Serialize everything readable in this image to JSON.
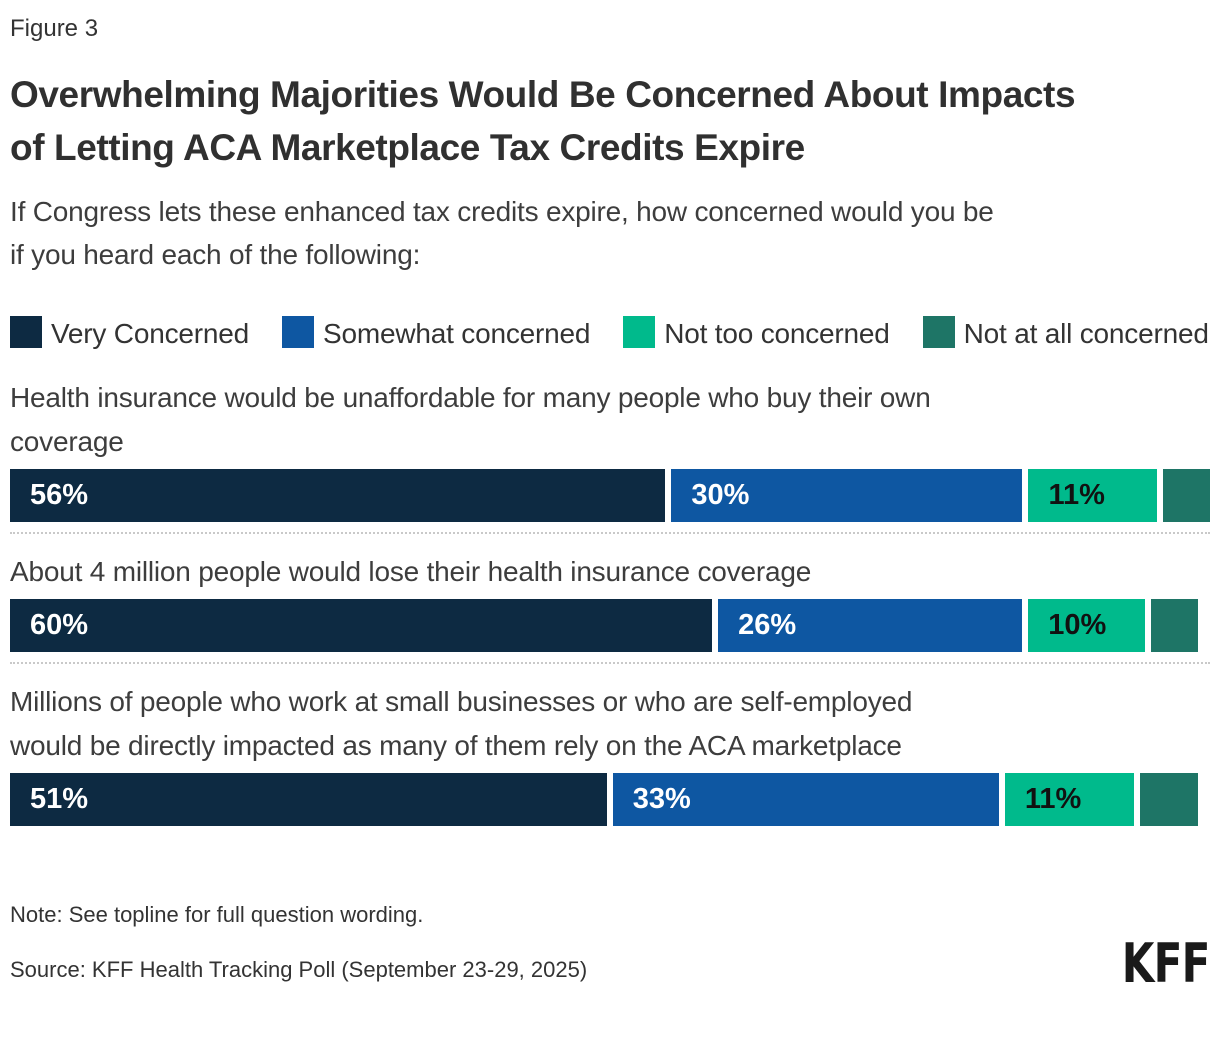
{
  "figure_label": "Figure 3",
  "title_lines": [
    "Overwhelming Majorities Would Be Concerned About Impacts",
    "of Letting ACA Marketplace Tax Credits Expire"
  ],
  "subtitle_lines": [
    "If Congress lets these enhanced tax credits expire, how concerned would you be",
    "if you heard each of the following:"
  ],
  "note": "Note: See topline for full question wording.",
  "source": "Source: KFF Health Tracking Poll (September 23-29, 2025)",
  "logo_text": "KFF",
  "colors": {
    "very_concerned": "#0d2a42",
    "somewhat_concerned": "#0e57a2",
    "not_too_concerned": "#00ba8c",
    "not_at_all_concerned": "#1e7566",
    "separator": "#c9c9c9",
    "title_text": "#303030",
    "body_text": "#3d3d3d"
  },
  "chart_data": {
    "type": "bar",
    "stacked": true,
    "orientation": "horizontal",
    "title": "Overwhelming Majorities Would Be Concerned About Impacts of Letting ACA Marketplace Tax Credits Expire",
    "subtitle": "If Congress lets these enhanced tax credits expire, how concerned would you be if you heard each of the following:",
    "xlabel": "",
    "ylabel": "",
    "xlim": [
      0,
      100
    ],
    "grid": false,
    "legend_position": "top",
    "value_suffix": "%",
    "categories": [
      "Health insurance would be unaffordable for many people who buy their own coverage",
      "About 4 million people would lose their health insurance coverage",
      "Millions of people who work at small businesses or who are self-employed would be directly impacted as many of them rely on the ACA marketplace"
    ],
    "categories_lines": [
      [
        "Health insurance would be unaffordable for many people who buy their own",
        "coverage"
      ],
      [
        "About 4 million people would lose their health insurance coverage"
      ],
      [
        "Millions of people who work at small businesses or who are self-employed",
        "would be directly impacted as many of them rely on the ACA marketplace"
      ]
    ],
    "series": [
      {
        "name": "Very Concerned",
        "color": "#0d2a42",
        "label_color": "#ffffff",
        "show_labels": true,
        "values": [
          56,
          60,
          51
        ]
      },
      {
        "name": "Somewhat concerned",
        "color": "#0e57a2",
        "label_color": "#ffffff",
        "show_labels": true,
        "values": [
          30,
          26,
          33
        ]
      },
      {
        "name": "Not too concerned",
        "color": "#00ba8c",
        "label_color": "#111111",
        "show_labels": true,
        "values": [
          11,
          10,
          11
        ]
      },
      {
        "name": "Not at all concerned",
        "color": "#1e7566",
        "label_color": "#111111",
        "show_labels": false,
        "values": [
          4,
          4,
          5
        ],
        "note": "values not labeled in figure; estimated from segment widths"
      }
    ]
  }
}
